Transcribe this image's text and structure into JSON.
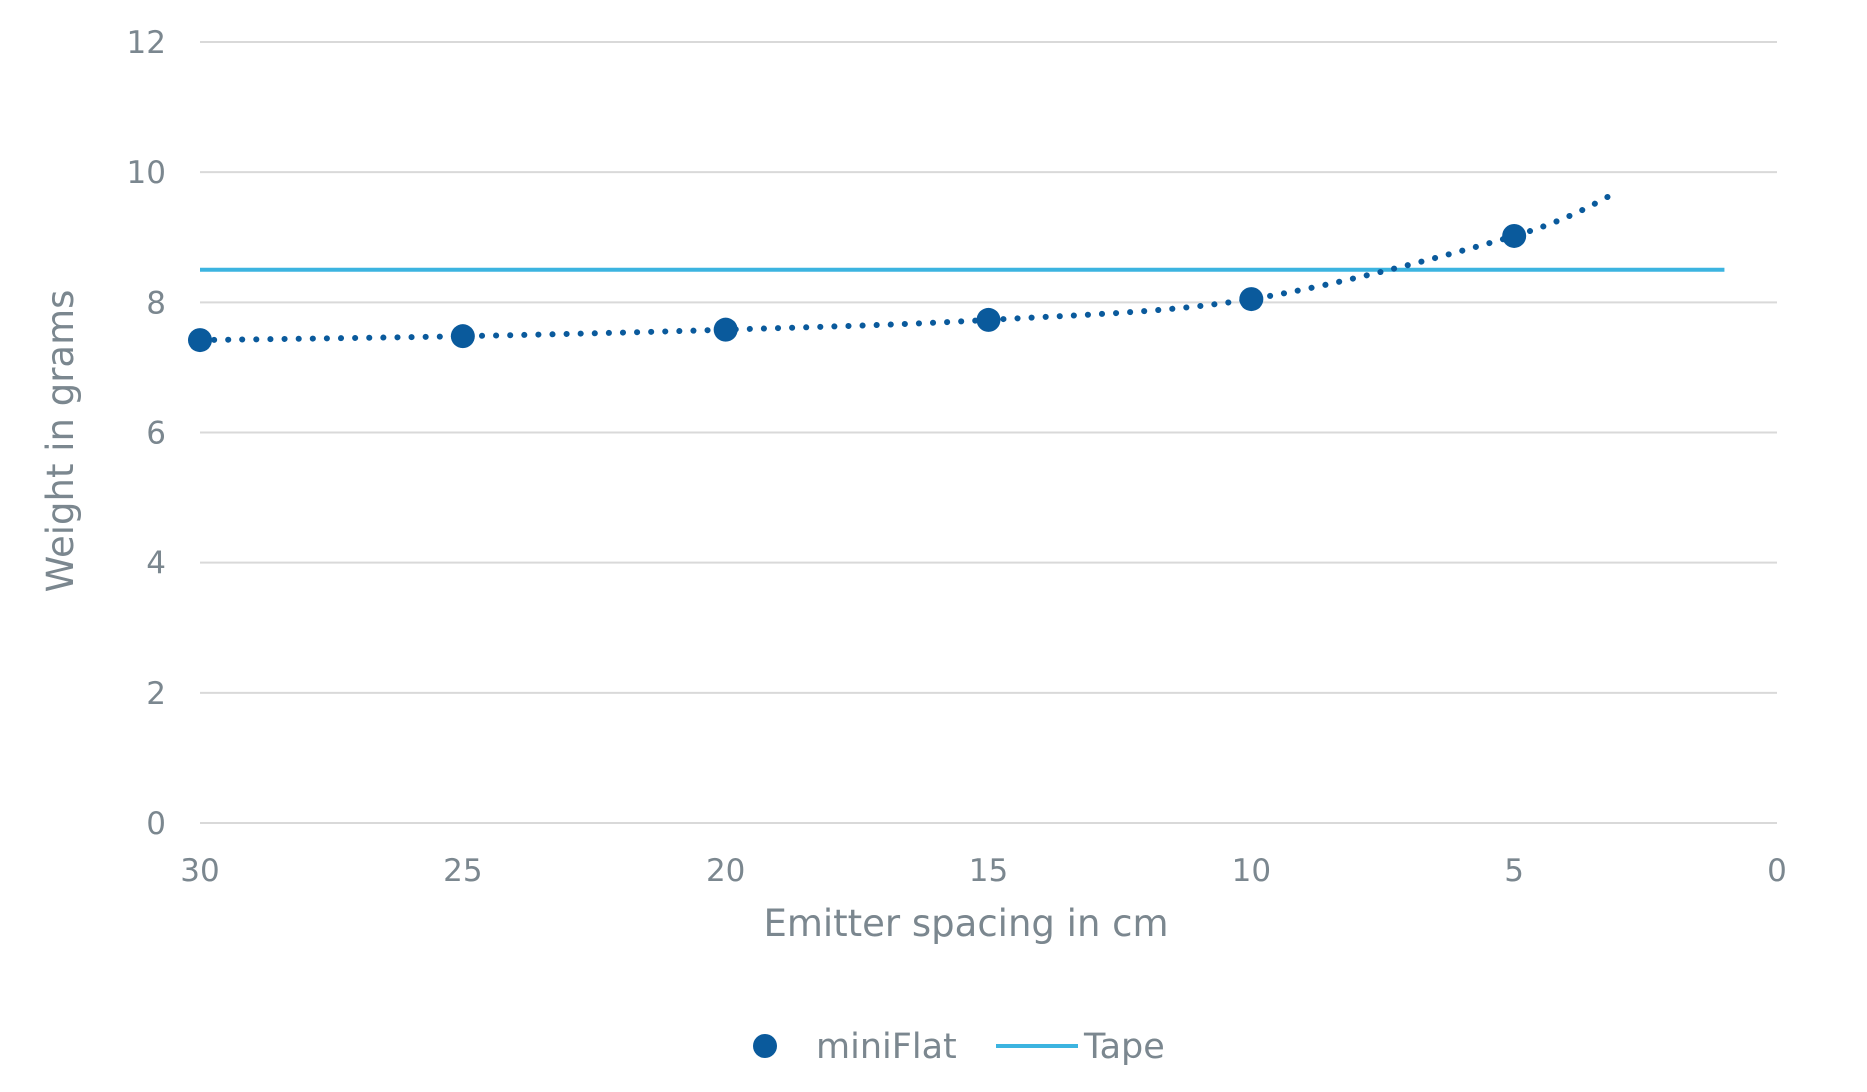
{
  "chart_data": {
    "type": "scatter",
    "xlabel": "Emitter spacing in cm",
    "ylabel": "Weight in grams",
    "xlim": [
      30,
      0
    ],
    "x_reversed": true,
    "ylim": [
      0,
      12
    ],
    "x_ticks": [
      "30",
      "25",
      "20",
      "15",
      "10",
      "5",
      "0"
    ],
    "y_ticks": [
      "0",
      "2",
      "4",
      "6",
      "8",
      "10",
      "12"
    ],
    "grid": "horizontal",
    "legend_position": "bottom",
    "series": [
      {
        "name": "miniFlat",
        "kind": "markers",
        "trendline": "dotted",
        "color": "#0a5a9c",
        "x": [
          30,
          25,
          20,
          15,
          10,
          5
        ],
        "y": [
          7.42,
          7.48,
          7.58,
          7.73,
          8.05,
          9.02
        ]
      },
      {
        "name": "Tape",
        "kind": "line",
        "color": "#3cb4e0",
        "x": [
          30,
          1
        ],
        "y": [
          8.5,
          8.5
        ]
      }
    ],
    "trendline_extent": [
      30,
      3
    ]
  }
}
